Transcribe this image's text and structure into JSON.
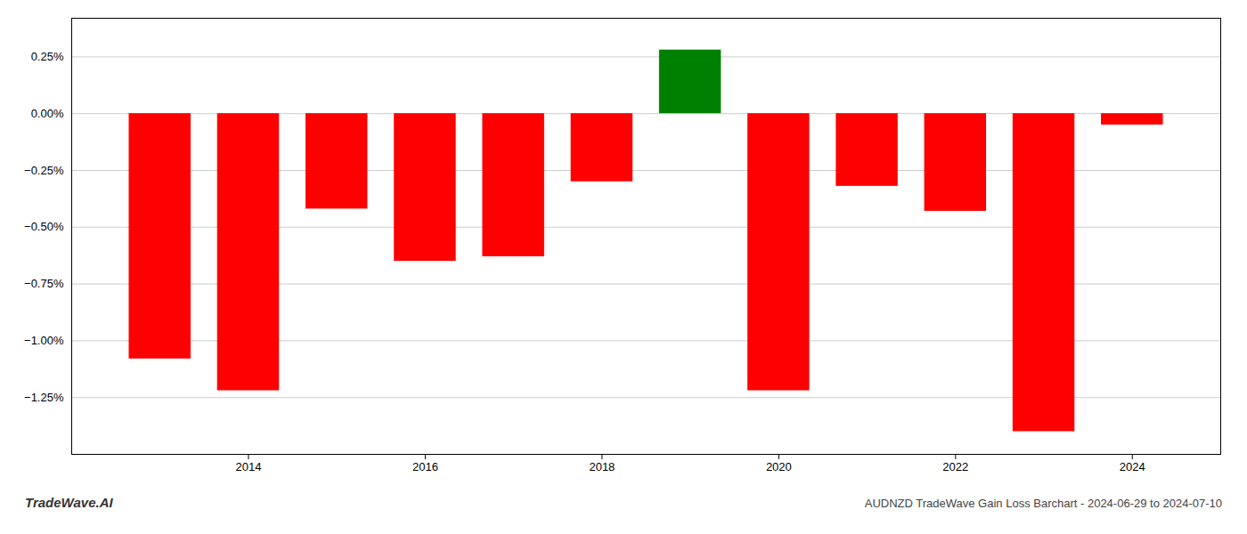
{
  "chart_data": {
    "type": "bar",
    "title": "AUDNZD TradeWave Gain Loss Barchart - 2024-06-29 to 2024-07-10",
    "annotations": [
      "TradeWave.AI"
    ],
    "x": [
      2013,
      2014,
      2015,
      2016,
      2017,
      2018,
      2019,
      2020,
      2021,
      2022,
      2023,
      2024
    ],
    "values": [
      -1.08,
      -1.22,
      -0.42,
      -0.65,
      -0.63,
      -0.3,
      0.28,
      -1.22,
      -0.32,
      -0.43,
      -1.4,
      -0.05
    ],
    "colors": [
      "#ff0000",
      "#ff0000",
      "#ff0000",
      "#ff0000",
      "#ff0000",
      "#ff0000",
      "#008000",
      "#ff0000",
      "#ff0000",
      "#ff0000",
      "#ff0000",
      "#ff0000"
    ],
    "xlim": [
      2012,
      2025
    ],
    "xticks": [
      2014,
      2016,
      2018,
      2020,
      2022,
      2024
    ],
    "ylim": [
      -1.5,
      0.42
    ],
    "yticks": [
      {
        "value": 0.25,
        "label": "0.25%"
      },
      {
        "value": 0,
        "label": "0.00%"
      },
      {
        "value": -0.25,
        "label": "−0.25%"
      },
      {
        "value": -0.5,
        "label": "−0.50%"
      },
      {
        "value": -0.75,
        "label": "−0.75%"
      },
      {
        "value": -1.0,
        "label": "−1.00%"
      },
      {
        "value": -1.25,
        "label": "−1.25%"
      }
    ],
    "grid": true
  }
}
